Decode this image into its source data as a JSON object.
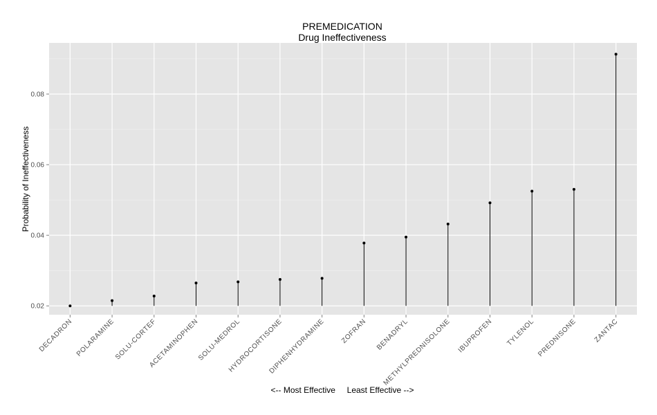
{
  "chart_data": {
    "type": "scatter",
    "style": "lollipop",
    "title": "PREMEDICATION",
    "subtitle": "Drug Ineffectiveness",
    "xlabel": "<-- Most Effective     Least Effective -->",
    "ylabel": "Probability of Ineffectiveness",
    "ylim": [
      0.0175,
      0.0945
    ],
    "baseline": 0.02,
    "yticks": [
      0.02,
      0.04,
      0.06,
      0.08
    ],
    "ytick_labels": [
      "0.02",
      "0.04",
      "0.06",
      "0.08"
    ],
    "grid": true,
    "legend": "none",
    "categories": [
      "DECADRON",
      "POLARAMINE",
      "SOLU-CORTEF",
      "ACETAMINOPHEN",
      "SOLU-MEDROL",
      "HYDROCORTISONE",
      "DIPHENHYDRAMINE",
      "ZOFRAN",
      "BENADRYL",
      "METHYLPREDNISOLONE",
      "IBUPROFEN",
      "TYLENOL",
      "PREDNISONE",
      "ZANTAC"
    ],
    "values": [
      0.02,
      0.0215,
      0.0228,
      0.0265,
      0.0268,
      0.0275,
      0.0278,
      0.0378,
      0.0395,
      0.0432,
      0.0492,
      0.0525,
      0.053,
      0.0913
    ],
    "colors": {
      "panel_bg": "#e5e5e5",
      "grid_major": "#ffffff",
      "grid_minor": "#f2f2f2",
      "point": "#000000",
      "segment": "#000000",
      "tick_text": "#4d4d4d"
    }
  }
}
